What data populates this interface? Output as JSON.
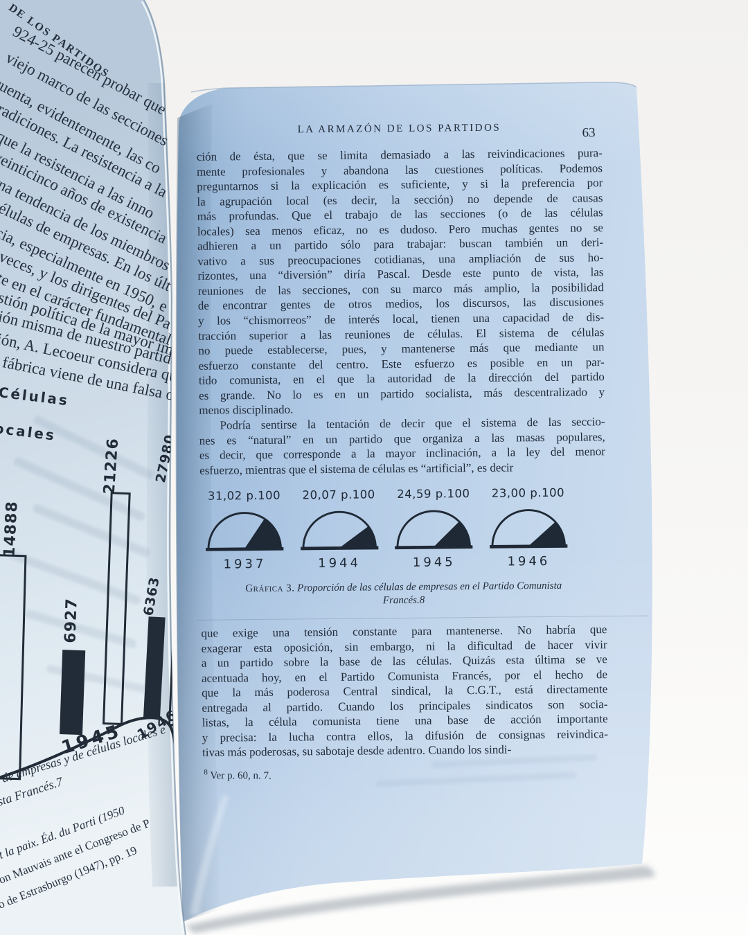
{
  "colors": {
    "paper_blue": "#aac6e2",
    "paper_left": "#d6e2ec",
    "ink": "#232d3a",
    "background": "#f2f1ef"
  },
  "book": {
    "left_page": {
      "header_fragment": "DE LOS PARTIDOS",
      "body_fragments": [
        "924-25 parecen probar que los",
        "viejo marco de las secciones al",
        "cuenta, evidentemente, las co",
        "tradiciones. La resistencia a la",
        ", que la resistencia a las inno",
        "veinticinco años de existencia",
        "una tendencia de los miembros",
        "células de empresas. En los últ",
        "ncia, especialmente en 1950, e",
        "s veces, y los dirigentes del Pa",
        "nte en el carácter fundamental",
        "estión política de la mayor imp",
        "ción misma de nuestro partido",
        "ción, A. Lecoeur considera que",
        "e fábrica viene de una falsa ori"
      ],
      "chart": {
        "type": "bar",
        "legend_fragments": [
          "Células",
          "ocales"
        ],
        "bars": [
          {
            "label": "14888",
            "style": "outline"
          },
          {
            "label": "6927",
            "style": "solid"
          },
          {
            "label": "21226",
            "style": "outline"
          },
          {
            "label": "6363",
            "style": "solid"
          },
          {
            "label": "27980",
            "style": "outline"
          }
        ],
        "year_labels": [
          "1945",
          "1946"
        ]
      },
      "caption_fragments": [
        "s de empresas y de células locales e",
        "ista Francés.7"
      ],
      "footnote_fragments": [
        "et la paix. Éd. du Parti (1950",
        "éon Mauvais ante el Congreso de P",
        "so de Estrasburgo (1947), pp. 19"
      ]
    },
    "right_page": {
      "running_header": "LA ARMAZÓN DE LOS PARTIDOS",
      "page_number": "63",
      "paragraph1_lines": [
        "ción de ésta, que se limita demasiado a las reivindicaciones pura-",
        "mente profesionales y abandona las cuestiones políticas. Podemos",
        "preguntarnos si la explicación es suficiente, y si la preferencia por",
        "la agrupación local (es decir, la sección) no depende de causas",
        "más profundas. Que el trabajo de las secciones (o de las células",
        "locales) sea menos eficaz, no es dudoso. Pero muchas gentes no se",
        "adhieren a un partido sólo para trabajar: buscan también un deri-",
        "vativo a sus preocupaciones cotidianas, una ampliación de sus ho-",
        "rizontes, una “diversión” diría Pascal. Desde este punto de vista, las",
        "reuniones de las secciones, con su marco más amplio, la posibilidad",
        "de encontrar gentes de otros medios, los discursos, las discusiones",
        "y los “chismorreos” de interés local, tienen una capacidad de dis-",
        "tracción superior a las reuniones de células. El sistema de células",
        "no puede establecerse, pues, y mantenerse más que mediante un",
        "esfuerzo constante del centro. Este esfuerzo es posible en un par-",
        "tido comunista, en el que la autoridad de la dirección del partido",
        "es grande. No lo es en un partido socialista, más descentralizado y",
        "menos disciplinado."
      ],
      "paragraph2_lines": [
        "Podría sentirse la tentación de decir que el sistema de las seccio-",
        "nes es “natural” en un partido que organiza a las masas populares,",
        "es decir, que corresponde a la mayor inclinación, a la ley del menor",
        "esfuerzo, mientras que el sistema de células es “artificial”, es decir"
      ],
      "gauge_chart": {
        "type": "pie",
        "unit": "p.100",
        "gauges": [
          {
            "pct_label": "31,02 p.100",
            "value": 31.02,
            "year": "1937"
          },
          {
            "pct_label": "20,07 p.100",
            "value": 20.07,
            "year": "1944"
          },
          {
            "pct_label": "24,59 p.100",
            "value": 24.59,
            "year": "1945"
          },
          {
            "pct_label": "23,00 p.100",
            "value": 23.0,
            "year": "1946"
          }
        ]
      },
      "caption": {
        "label": "Gráfica 3.",
        "line1": "Proporción de las células de empresas en el Partido Comunista",
        "line2": "Francés.8"
      },
      "paragraph3_lines": [
        "que exige una tensión constante para mantenerse. No habría que",
        "exagerar esta oposición, sin embargo, ni la dificultad de hacer vivir",
        "a un partido sobre la base de las células. Quizás esta última se ve",
        "acentuada hoy, en el Partido Comunista Francés, por el hecho de",
        "que la más poderosa Central sindical, la C.G.T., está directamente",
        "entregada al partido. Cuando los principales sindicatos son socia-",
        "listas, la célula comunista tiene una base de acción importante",
        "y precisa: la lucha contra ellos, la difusión de consignas reivindica-",
        "tivas más poderosas, su sabotaje desde adentro. Cuando los sindi-"
      ],
      "footnote": {
        "marker": "8",
        "text": "Ver p. 60, n. 7."
      }
    }
  },
  "chart_data": [
    {
      "type": "pie",
      "title": "Gráfica 3. Proporción de las células de empresas en el Partido Comunista Francés",
      "categories": [
        "1937",
        "1944",
        "1945",
        "1946"
      ],
      "values": [
        31.02,
        20.07,
        24.59,
        23.0
      ],
      "unit": "p.100",
      "note": "four half-circle gauges, black sector = percentage of 180°"
    },
    {
      "type": "bar",
      "title": "células de empresas y de células locales (left page, partially visible)",
      "values": [
        14888,
        6927,
        21226,
        6363,
        27980
      ],
      "bar_styles": [
        "outline",
        "solid",
        "outline",
        "solid",
        "outline"
      ],
      "x_labels_visible": [
        "1945",
        "1946"
      ]
    }
  ]
}
